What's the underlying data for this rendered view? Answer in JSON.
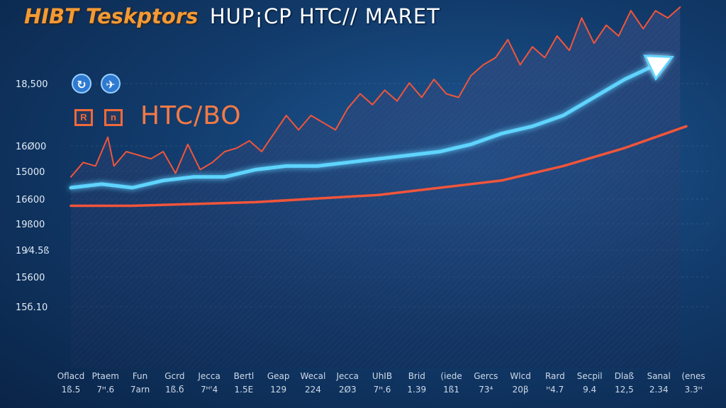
{
  "header": {
    "title_left": "HIBT Teskptors",
    "title_right": "HUP¡CP HTC// MARET",
    "pair_label": "HTC/BO",
    "badges": [
      "R",
      "n"
    ],
    "logo_icons": [
      "exchange-logo-icon",
      "chat-logo-icon"
    ]
  },
  "colors": {
    "volatile_line": "#f2553a",
    "glow_line": "#5fd4ff",
    "lower_line": "#f2553a",
    "accent_orange": "#f39a34"
  },
  "chart_data": {
    "type": "line",
    "title": "HIBT Teskptors HUP¡CP HTC// MARET",
    "subtitle": "HTC/BO",
    "y_tick_labels": [
      "18,500",
      "16Ø00",
      "15000",
      "16600",
      "19ß00",
      "19⁄4.5ß",
      "15600",
      "15б.10"
    ],
    "x_tick_labels": [
      [
        "Oflacd",
        "1ß.5"
      ],
      [
        "Ptaem",
        "7ᴴ.6"
      ],
      [
        "Fun",
        "7arn"
      ],
      [
        "Gcrd",
        "1ß.б"
      ],
      [
        "Jecca",
        "7ᴴ'4"
      ],
      [
        "Bertl",
        "1.5Е"
      ],
      [
        "Geap",
        "129"
      ],
      [
        "Wecal",
        "224"
      ],
      [
        "Jecca",
        "2Ø3"
      ],
      [
        "UhIB",
        "7ᴴ.6"
      ],
      [
        "Brid",
        "1.39"
      ],
      [
        "(iede",
        "1ß1"
      ],
      [
        "Gercs",
        "73⁴"
      ],
      [
        "Wlcd",
        "20β"
      ],
      [
        "Rard",
        "ᴴ4.7"
      ],
      [
        "Secpil",
        "9.4"
      ],
      [
        "Dlaß",
        "12,5"
      ],
      [
        "Sanal",
        "2.34"
      ],
      [
        "(enes",
        "3.3ᴴ"
      ]
    ],
    "ylim": [
      0,
      100
    ],
    "xlim": [
      0,
      100
    ],
    "grid": true,
    "arrow_on_series": 2,
    "series": [
      {
        "values": [
          [
            0,
            53
          ],
          [
            2,
            57
          ],
          [
            4,
            56
          ],
          [
            6,
            64
          ],
          [
            7,
            56
          ],
          [
            9,
            60
          ],
          [
            11,
            59
          ],
          [
            13,
            58
          ],
          [
            15,
            60
          ],
          [
            17,
            54
          ],
          [
            19,
            62
          ],
          [
            21,
            55
          ],
          [
            23,
            57
          ],
          [
            25,
            60
          ],
          [
            27,
            61
          ],
          [
            29,
            63
          ],
          [
            31,
            60
          ],
          [
            33,
            65
          ],
          [
            35,
            70
          ],
          [
            37,
            66
          ],
          [
            39,
            70
          ],
          [
            41,
            68
          ],
          [
            43,
            66
          ],
          [
            45,
            72
          ],
          [
            47,
            76
          ],
          [
            49,
            73
          ],
          [
            51,
            77
          ],
          [
            53,
            74
          ],
          [
            55,
            79
          ],
          [
            57,
            75
          ],
          [
            59,
            80
          ],
          [
            61,
            76
          ],
          [
            63,
            75
          ],
          [
            65,
            81
          ],
          [
            67,
            84
          ],
          [
            69,
            86
          ],
          [
            71,
            91
          ],
          [
            73,
            84
          ],
          [
            75,
            89
          ],
          [
            77,
            86
          ],
          [
            79,
            92
          ],
          [
            81,
            88
          ],
          [
            83,
            97
          ],
          [
            85,
            90
          ],
          [
            87,
            95
          ],
          [
            89,
            92
          ],
          [
            91,
            99
          ],
          [
            93,
            94
          ],
          [
            95,
            99
          ],
          [
            97,
            97
          ],
          [
            99,
            100
          ]
        ]
      },
      {
        "values": [
          [
            0,
            50
          ],
          [
            5,
            51
          ],
          [
            10,
            50
          ],
          [
            15,
            52
          ],
          [
            20,
            53
          ],
          [
            25,
            53
          ],
          [
            30,
            55
          ],
          [
            35,
            56
          ],
          [
            40,
            56
          ],
          [
            45,
            57
          ],
          [
            50,
            58
          ],
          [
            55,
            59
          ],
          [
            60,
            60
          ],
          [
            65,
            62
          ],
          [
            70,
            65
          ],
          [
            75,
            67
          ],
          [
            80,
            70
          ],
          [
            85,
            75
          ],
          [
            90,
            80
          ],
          [
            95,
            84
          ]
        ]
      },
      {
        "values": [
          [
            0,
            45
          ],
          [
            10,
            45
          ],
          [
            20,
            45.5
          ],
          [
            30,
            46
          ],
          [
            40,
            47
          ],
          [
            50,
            48
          ],
          [
            60,
            50
          ],
          [
            70,
            52
          ],
          [
            80,
            56
          ],
          [
            90,
            61
          ],
          [
            100,
            67
          ]
        ]
      }
    ]
  }
}
